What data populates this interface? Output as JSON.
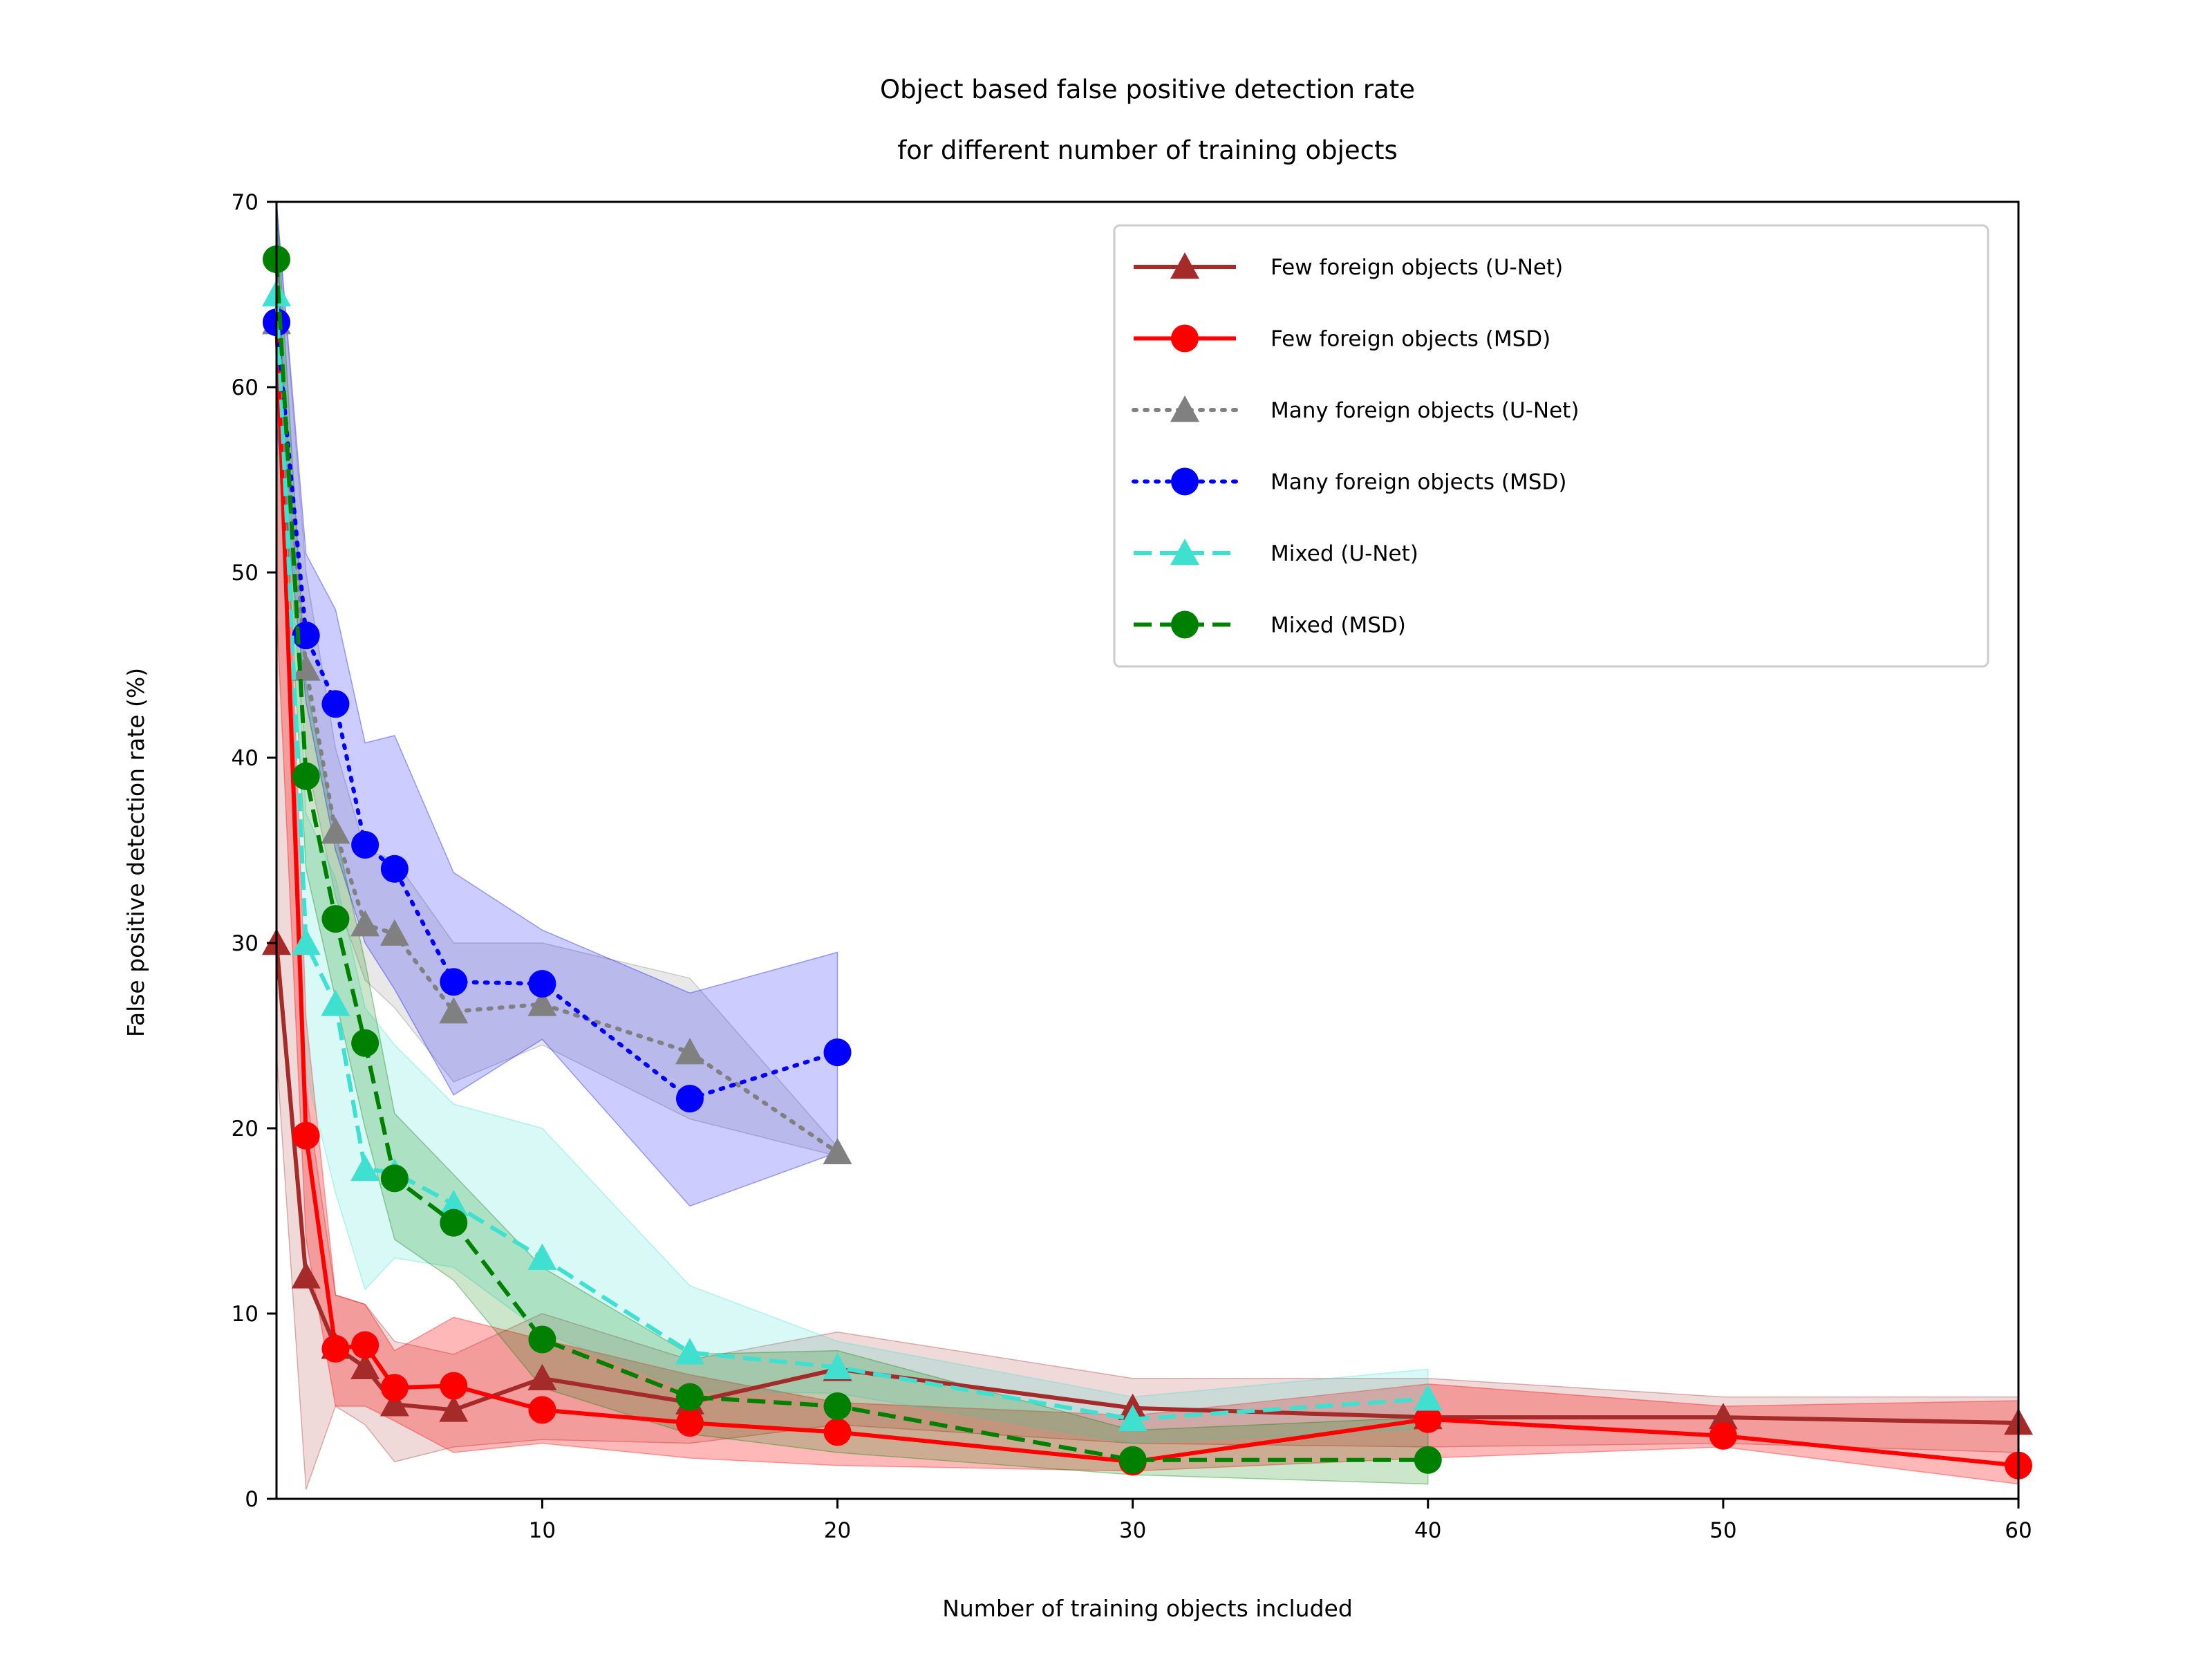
{
  "chart_data": {
    "type": "line",
    "title": [
      "Object based false positive detection rate",
      "for different number of training objects"
    ],
    "xlabel": "Number of training objects included",
    "ylabel": "False positive detection rate (%)",
    "xlim": [
      1,
      60
    ],
    "ylim": [
      0,
      70
    ],
    "xticks": [
      10,
      20,
      30,
      40,
      50,
      60
    ],
    "yticks": [
      0,
      10,
      20,
      30,
      40,
      50,
      60,
      70
    ],
    "grid": false,
    "legend_position": "top-right",
    "series": [
      {
        "name": "Few foreign objects (U-Net)",
        "color": "#a52a2a",
        "linestyle": "solid",
        "marker": "triangle",
        "band_alpha": 0.18,
        "x": [
          1,
          2,
          3,
          4,
          5,
          7,
          10,
          15,
          20,
          30,
          40,
          50,
          60
        ],
        "y": [
          30,
          12,
          8.2,
          7.1,
          5.1,
          4.8,
          6.5,
          5.2,
          7.0,
          4.9,
          4.4,
          4.4,
          4.1
        ],
        "lower": [
          24,
          0.5,
          5,
          4,
          2,
          2.8,
          3.2,
          3,
          4,
          3,
          2.8,
          3,
          2.5
        ],
        "upper": [
          70,
          22,
          11,
          10.5,
          8.5,
          7.8,
          10,
          7.5,
          9,
          6.5,
          6.5,
          5.5,
          5.5
        ]
      },
      {
        "name": "Few foreign objects (MSD)",
        "color": "#ff0000",
        "linestyle": "solid",
        "marker": "circle",
        "band_alpha": 0.28,
        "x": [
          1,
          2,
          3,
          4,
          5,
          7,
          10,
          15,
          20,
          30,
          40,
          50,
          60
        ],
        "y": [
          63.5,
          19.6,
          8.1,
          8.3,
          6.0,
          6.1,
          4.8,
          4.1,
          3.6,
          2.0,
          4.3,
          3.4,
          1.8
        ],
        "lower": [
          48,
          14,
          5,
          5,
          4.2,
          2.5,
          3,
          2.2,
          1.8,
          1.5,
          2.2,
          2.8,
          0.8
        ],
        "upper": [
          70,
          26,
          11,
          10.5,
          8,
          9.8,
          8.6,
          6.7,
          5.2,
          4.5,
          6.2,
          5,
          5.3
        ]
      },
      {
        "name": "Many foreign objects (U-Net)",
        "color": "#808080",
        "linestyle": "dotted",
        "marker": "triangle",
        "band_alpha": 0.18,
        "x": [
          1,
          2,
          3,
          4,
          5,
          7,
          10,
          15,
          20
        ],
        "y": [
          63.5,
          44.8,
          36.0,
          31.0,
          30.5,
          26.3,
          26.7,
          24.1,
          18.7
        ],
        "lower": [
          59,
          40,
          32.5,
          28,
          26.5,
          22.5,
          24.5,
          20.5,
          18.5
        ],
        "upper": [
          70,
          50,
          40.5,
          35,
          34.5,
          30,
          30,
          28.1,
          19
        ]
      },
      {
        "name": "Many foreign objects (MSD)",
        "color": "#0000ff",
        "linestyle": "dotted",
        "marker": "circle",
        "band_alpha": 0.2,
        "x": [
          1,
          2,
          3,
          4,
          5,
          7,
          10,
          15,
          20
        ],
        "y": [
          63.5,
          46.6,
          42.9,
          35.3,
          34.0,
          27.9,
          27.8,
          21.6,
          24.1
        ],
        "lower": [
          58,
          43,
          35,
          30,
          27.5,
          21.8,
          24.8,
          15.8,
          18.7
        ],
        "upper": [
          70,
          51,
          48,
          40.8,
          41.2,
          33.8,
          30.7,
          27.3,
          29.5
        ]
      },
      {
        "name": "Mixed (U-Net)",
        "color": "#40e0d0",
        "linestyle": "dashed",
        "marker": "triangle",
        "band_alpha": 0.2,
        "x": [
          1,
          2,
          3,
          4,
          5,
          7,
          10,
          15,
          20,
          30,
          40
        ],
        "y": [
          65,
          30.0,
          26.7,
          17.8,
          17.6,
          15.9,
          13.0,
          7.9,
          7.1,
          4.3,
          5.4
        ],
        "lower": [
          58,
          23,
          16.5,
          11.3,
          13,
          12.5,
          9,
          5.8,
          5.7,
          3,
          3.8
        ],
        "upper": [
          70,
          37,
          33.5,
          26.5,
          24.5,
          21.3,
          20,
          11.5,
          8.5,
          5.5,
          7.0
        ]
      },
      {
        "name": "Mixed (MSD)",
        "color": "#008000",
        "linestyle": "dashed",
        "marker": "circle",
        "band_alpha": 0.2,
        "x": [
          1,
          2,
          3,
          4,
          5,
          7,
          10,
          15,
          20,
          30,
          40
        ],
        "y": [
          66.9,
          39.0,
          31.3,
          24.6,
          17.3,
          14.9,
          8.6,
          5.5,
          5.0,
          2.1,
          2.1
        ],
        "lower": [
          62,
          34,
          27,
          20,
          14,
          11.8,
          6,
          3.5,
          2.5,
          1.3,
          0.8
        ],
        "upper": [
          70,
          44,
          36,
          29,
          20.8,
          17.5,
          12.5,
          7.8,
          8.0,
          3.7,
          4.4
        ]
      }
    ]
  }
}
